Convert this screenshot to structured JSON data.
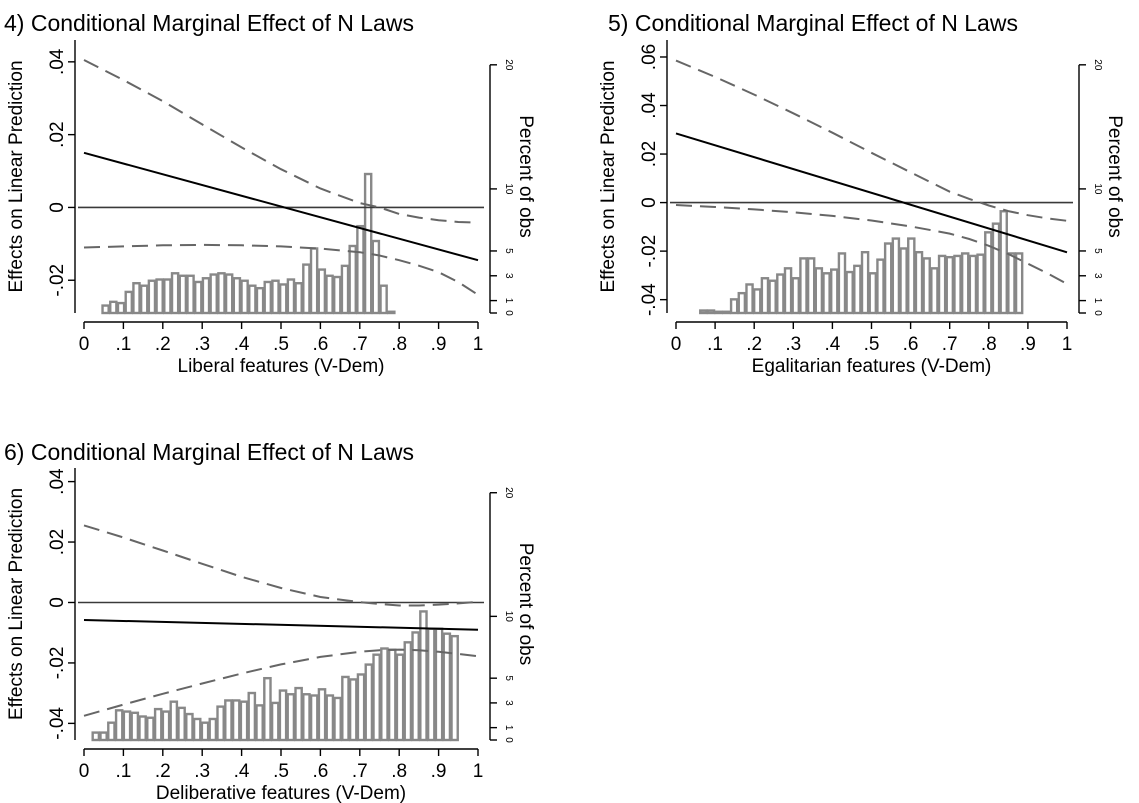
{
  "chart_data": [
    {
      "type": "line",
      "title": "4) Conditional Marginal Effect of N Laws",
      "xlabel": "Liberal features (V-Dem)",
      "ylabel": "Effects on Linear Prediction",
      "y2label": "Percent of obs",
      "xlim": [
        0,
        1
      ],
      "ylim": [
        -0.029,
        0.046
      ],
      "y2lim": [
        0,
        22
      ],
      "x_ticks": [
        0,
        0.1,
        0.2,
        0.3,
        0.4,
        0.5,
        0.6,
        0.7,
        0.8,
        0.9,
        1
      ],
      "x_tick_labels": [
        "0",
        ".1",
        ".2",
        ".3",
        ".4",
        ".5",
        ".6",
        ".7",
        ".8",
        ".9",
        "1"
      ],
      "y_ticks": [
        -0.02,
        0,
        0.02,
        0.04
      ],
      "y_tick_labels": [
        "-.02",
        "0",
        ".02",
        ".04"
      ],
      "y2_ticks": [
        0,
        1,
        3,
        5,
        10,
        20
      ],
      "y2_tick_labels": [
        "0",
        "1",
        "3",
        "5",
        "10",
        "20"
      ],
      "reference_line": 0,
      "effect_line": {
        "x": [
          0,
          1
        ],
        "y": [
          0.015,
          -0.0145
        ]
      },
      "ci_upper": {
        "x": [
          0,
          0.1,
          0.2,
          0.3,
          0.4,
          0.5,
          0.6,
          0.7,
          0.75,
          0.8,
          0.85,
          0.9,
          0.95,
          1
        ],
        "y": [
          0.0405,
          0.035,
          0.0292,
          0.0228,
          0.0165,
          0.0105,
          0.0052,
          0.0012,
          0.0,
          -0.0018,
          -0.0028,
          -0.0035,
          -0.004,
          -0.0042
        ]
      },
      "ci_lower": {
        "x": [
          0,
          0.1,
          0.2,
          0.3,
          0.4,
          0.5,
          0.6,
          0.7,
          0.75,
          0.8,
          0.85,
          0.9,
          0.95,
          1
        ],
        "y": [
          -0.011,
          -0.0107,
          -0.0104,
          -0.0103,
          -0.0104,
          -0.0107,
          -0.0113,
          -0.0123,
          -0.0132,
          -0.0145,
          -0.016,
          -0.0178,
          -0.0205,
          -0.024
        ]
      },
      "histogram": {
        "bin_start": 0.045,
        "bin_width": 0.0196,
        "values": [
          0.6,
          0.9,
          0.8,
          1.7,
          2.4,
          2.2,
          2.6,
          2.7,
          2.7,
          3.2,
          3.0,
          3.0,
          2.5,
          2.8,
          3.1,
          3.2,
          3.1,
          2.8,
          2.6,
          2.2,
          2.0,
          2.5,
          2.6,
          2.3,
          2.7,
          2.4,
          3.9,
          5.2,
          3.5,
          3.0,
          2.9,
          3.8,
          5.4,
          7.0,
          11.2,
          5.8,
          2.2,
          0.1
        ]
      }
    },
    {
      "type": "line",
      "title": "5) Conditional Marginal Effect of N Laws",
      "xlabel": "Egalitarian features (V-Dem)",
      "ylabel": "Effects on Linear Prediction",
      "y2label": "Percent of obs",
      "xlim": [
        0,
        1
      ],
      "ylim": [
        -0.0455,
        0.067
      ],
      "y2lim": [
        0,
        22
      ],
      "x_ticks": [
        0,
        0.1,
        0.2,
        0.3,
        0.4,
        0.5,
        0.6,
        0.7,
        0.8,
        0.9,
        1
      ],
      "x_tick_labels": [
        "0",
        ".1",
        ".2",
        ".3",
        ".4",
        ".5",
        ".6",
        ".7",
        ".8",
        ".9",
        "1"
      ],
      "y_ticks": [
        -0.04,
        -0.02,
        0,
        0.02,
        0.04,
        0.06
      ],
      "y_tick_labels": [
        "-.04",
        "-.02",
        "0",
        ".02",
        ".04",
        ".06"
      ],
      "y2_ticks": [
        0,
        1,
        3,
        5,
        10,
        20
      ],
      "y2_tick_labels": [
        "0",
        "1",
        "3",
        "5",
        "10",
        "20"
      ],
      "reference_line": 0,
      "effect_line": {
        "x": [
          0,
          1
        ],
        "y": [
          0.0285,
          -0.0205
        ]
      },
      "ci_upper": {
        "x": [
          0,
          0.1,
          0.2,
          0.3,
          0.4,
          0.5,
          0.6,
          0.7,
          0.75,
          0.8,
          0.85,
          0.9,
          0.95,
          1
        ],
        "y": [
          0.0585,
          0.0518,
          0.0445,
          0.0368,
          0.0288,
          0.0205,
          0.0125,
          0.0045,
          0.0015,
          -0.0012,
          -0.0035,
          -0.0052,
          -0.0065,
          -0.0075
        ]
      },
      "ci_lower": {
        "x": [
          0,
          0.1,
          0.2,
          0.3,
          0.4,
          0.5,
          0.6,
          0.7,
          0.75,
          0.8,
          0.85,
          0.9,
          0.95,
          1
        ],
        "y": [
          -0.001,
          -0.0018,
          -0.0028,
          -0.004,
          -0.0055,
          -0.0074,
          -0.0098,
          -0.0128,
          -0.015,
          -0.0178,
          -0.0212,
          -0.0252,
          -0.0292,
          -0.0335
        ]
      },
      "histogram": {
        "bin_start": 0.06,
        "bin_width": 0.0197,
        "values": [
          0.2,
          0.2,
          0.1,
          0.1,
          1.1,
          1.6,
          2.3,
          1.9,
          2.8,
          2.6,
          3.1,
          3.6,
          2.8,
          4.4,
          4.4,
          3.6,
          3.2,
          3.5,
          4.8,
          3.3,
          3.8,
          4.9,
          3.2,
          4.3,
          5.6,
          6.0,
          5.2,
          6.0,
          4.9,
          4.4,
          3.6,
          4.6,
          4.5,
          4.6,
          4.8,
          4.6,
          4.7,
          6.5,
          7.2,
          8.2,
          4.8,
          4.8
        ]
      }
    },
    {
      "type": "line",
      "title": "6) Conditional Marginal Effect of N Laws",
      "xlabel": "Deliberative features (V-Dem)",
      "ylabel": "Effects on Linear Prediction",
      "y2label": "Percent of obs",
      "xlim": [
        0,
        1
      ],
      "ylim": [
        -0.0455,
        0.0445
      ],
      "y2lim": [
        0,
        22
      ],
      "x_ticks": [
        0,
        0.1,
        0.2,
        0.3,
        0.4,
        0.5,
        0.6,
        0.7,
        0.8,
        0.9,
        1
      ],
      "x_tick_labels": [
        "0",
        ".1",
        ".2",
        ".3",
        ".4",
        ".5",
        ".6",
        ".7",
        ".8",
        ".9",
        "1"
      ],
      "y_ticks": [
        -0.04,
        -0.02,
        0,
        0.02,
        0.04
      ],
      "y_tick_labels": [
        "-.04",
        "-.02",
        "0",
        ".02",
        ".04"
      ],
      "y2_ticks": [
        0,
        1,
        3,
        5,
        10,
        20
      ],
      "y2_tick_labels": [
        "0",
        "1",
        "3",
        "5",
        "10",
        "20"
      ],
      "reference_line": 0,
      "effect_line": {
        "x": [
          0,
          1
        ],
        "y": [
          -0.0058,
          -0.009
        ]
      },
      "ci_upper": {
        "x": [
          0,
          0.1,
          0.2,
          0.3,
          0.4,
          0.5,
          0.6,
          0.7,
          0.75,
          0.8,
          0.85,
          0.9,
          0.95,
          1
        ],
        "y": [
          0.0255,
          0.0215,
          0.0172,
          0.0128,
          0.0085,
          0.0048,
          0.0018,
          0.0001,
          -0.0005,
          -0.001,
          -0.001,
          -0.0007,
          -0.0003,
          0.0002
        ]
      },
      "ci_lower": {
        "x": [
          0,
          0.1,
          0.2,
          0.3,
          0.4,
          0.5,
          0.6,
          0.7,
          0.75,
          0.8,
          0.85,
          0.9,
          0.95,
          1
        ],
        "y": [
          -0.0375,
          -0.0338,
          -0.0302,
          -0.0268,
          -0.0235,
          -0.0205,
          -0.018,
          -0.0163,
          -0.0158,
          -0.0156,
          -0.0158,
          -0.0163,
          -0.017,
          -0.0178
        ]
      },
      "histogram": {
        "bin_start": 0.02,
        "bin_width": 0.0198,
        "values": [
          0.6,
          0.6,
          1.4,
          2.4,
          2.3,
          2.2,
          1.9,
          1.8,
          2.5,
          2.3,
          3.1,
          2.6,
          2.1,
          1.7,
          1.4,
          1.7,
          2.7,
          3.2,
          3.2,
          3.1,
          3.8,
          2.8,
          5.0,
          3.0,
          4.0,
          3.7,
          4.2,
          3.7,
          3.6,
          4.1,
          3.6,
          3.4,
          5.1,
          4.9,
          5.3,
          6.1,
          6.9,
          7.4,
          7.3,
          6.9,
          7.9,
          8.7,
          10.4,
          9.0,
          9.0,
          8.6,
          8.4
        ]
      }
    }
  ]
}
